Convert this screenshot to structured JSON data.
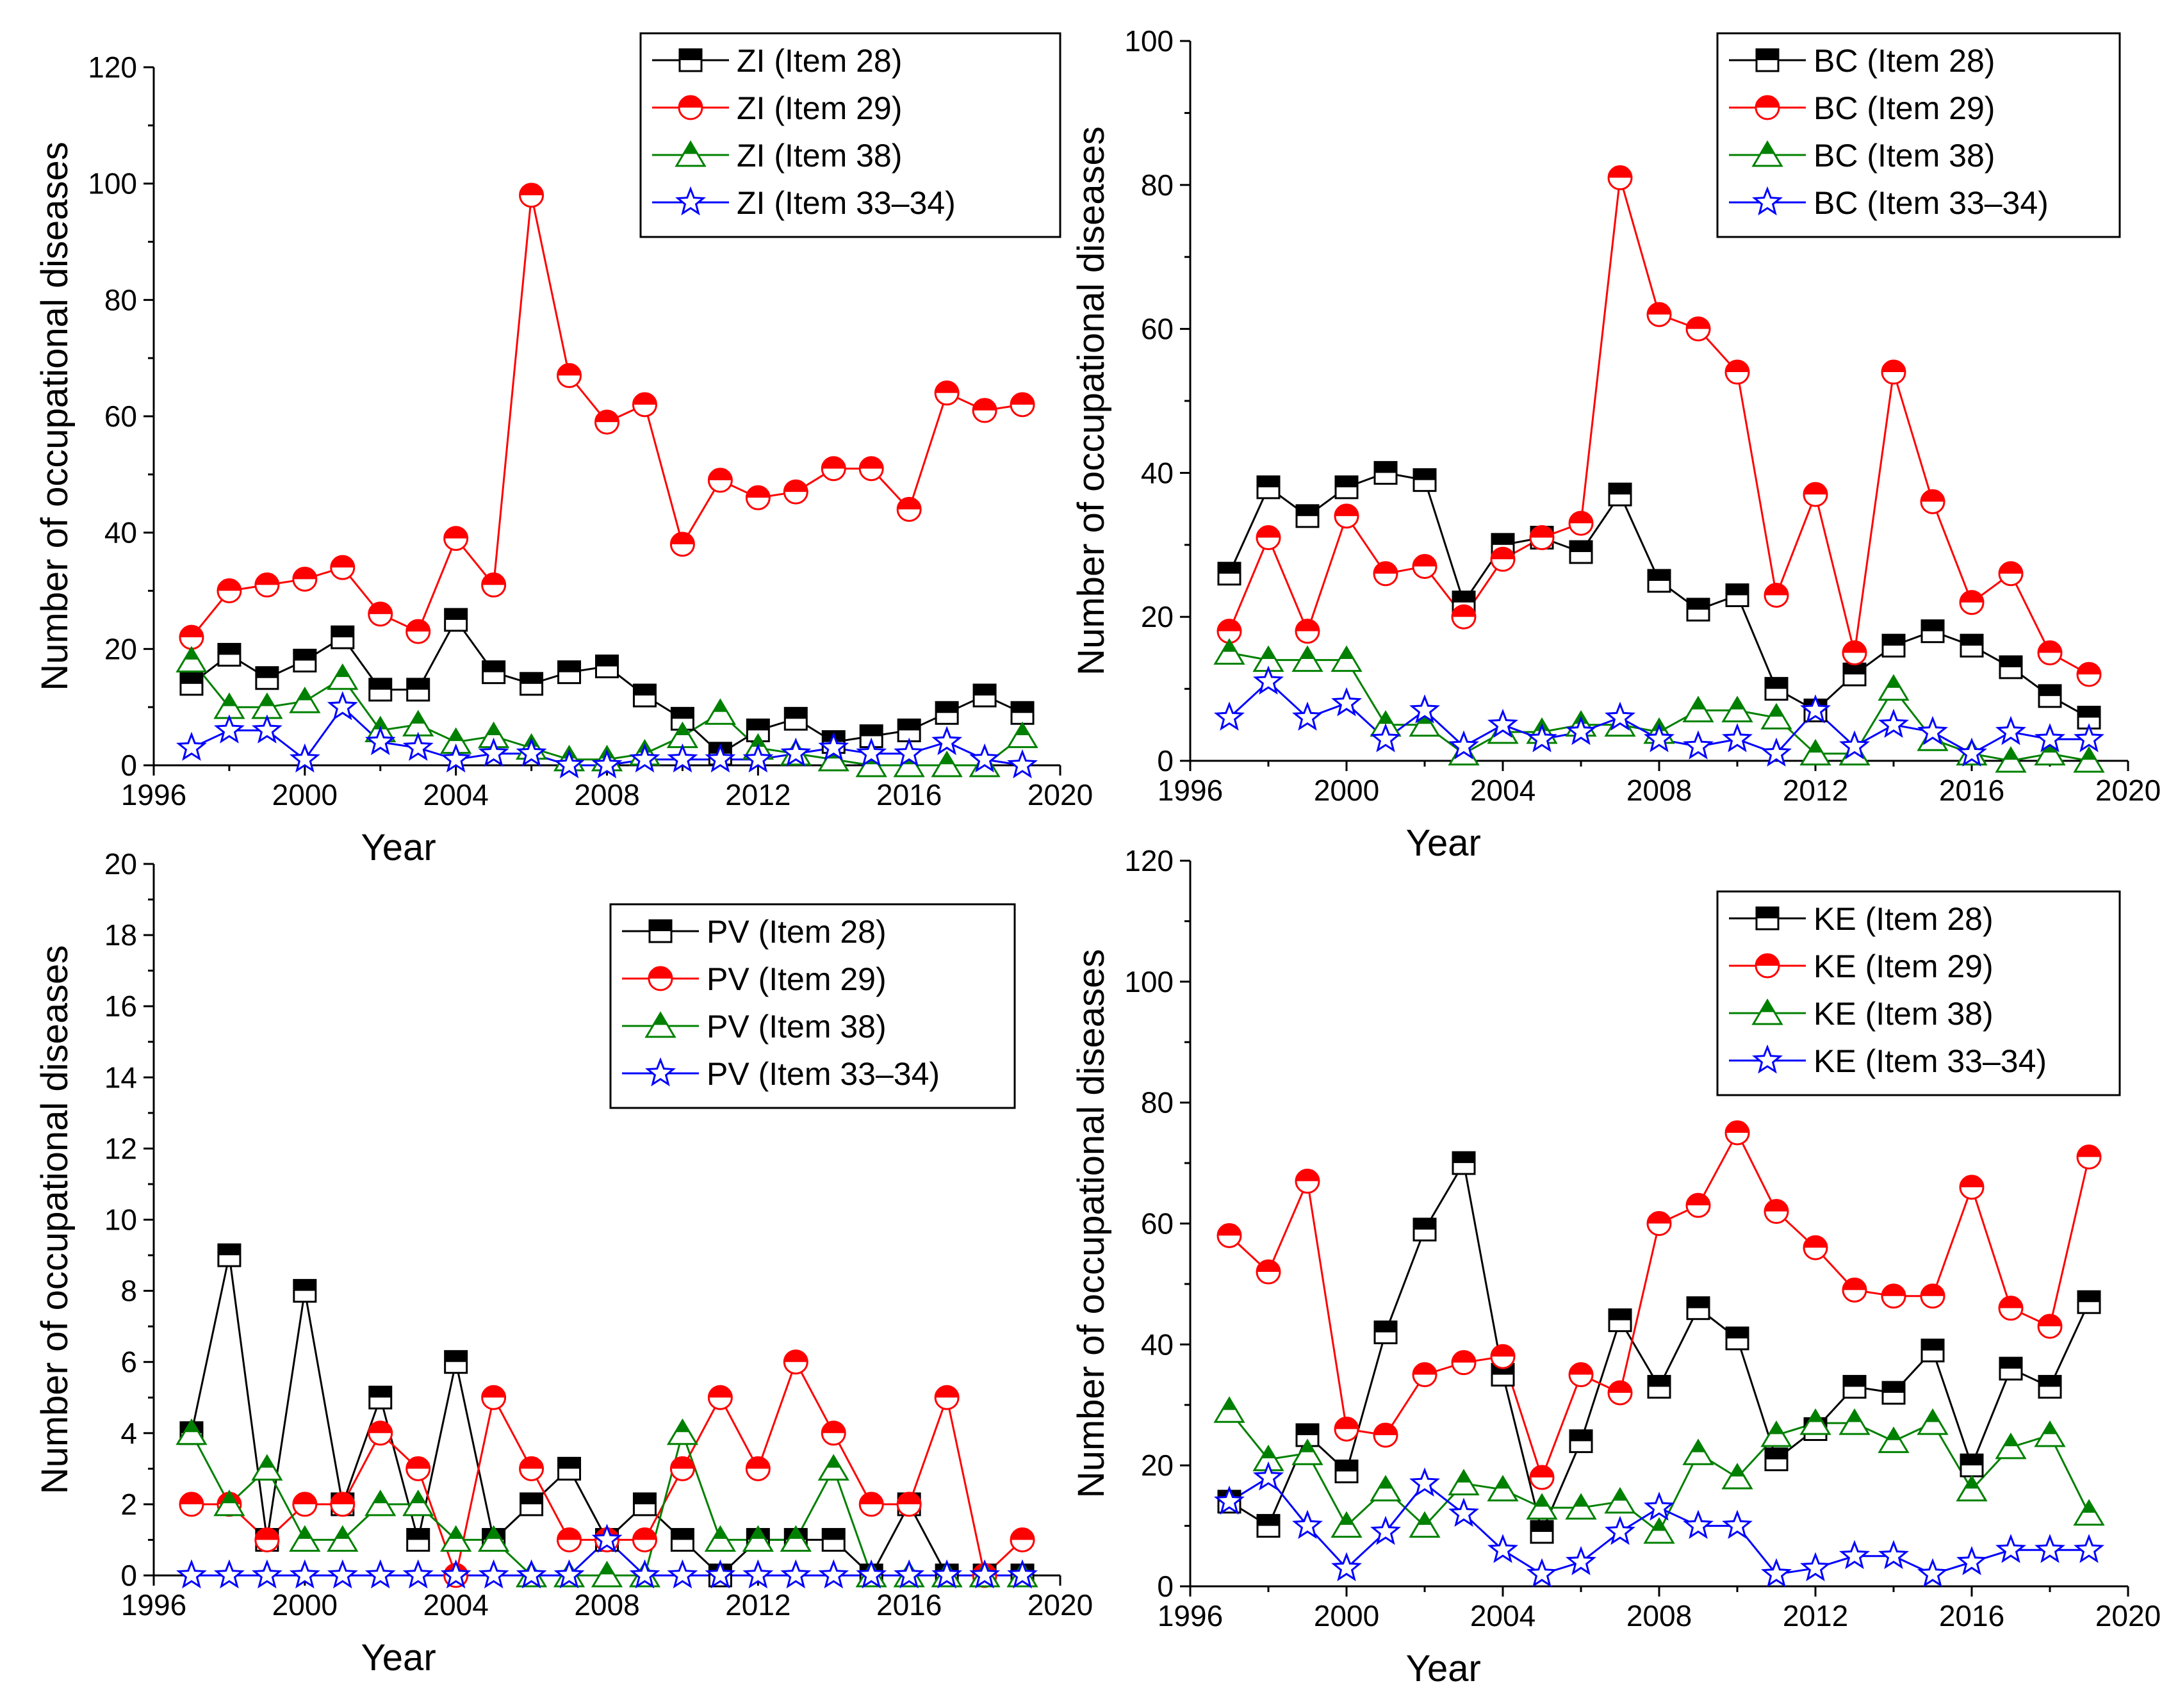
{
  "chart_data": [
    {
      "type": "line",
      "panel": "top-left",
      "xlabel": "Year",
      "ylabel": "Number of occupational diseases",
      "xlim": [
        1996,
        2020
      ],
      "ylim": [
        0,
        120
      ],
      "xticks": [
        1996,
        2000,
        2004,
        2008,
        2012,
        2016,
        2020
      ],
      "yticks": [
        0,
        20,
        40,
        60,
        80,
        100,
        120
      ],
      "legend_position": "top-right",
      "x": [
        1997,
        1998,
        1999,
        2000,
        2001,
        2002,
        2003,
        2004,
        2005,
        2006,
        2007,
        2008,
        2009,
        2010,
        2011,
        2012,
        2013,
        2014,
        2015,
        2016,
        2017,
        2018,
        2019
      ],
      "series": [
        {
          "name": "ZI (Item 28)",
          "color": "#000000",
          "marker": "square",
          "values": [
            14,
            19,
            15,
            18,
            22,
            13,
            13,
            25,
            16,
            14,
            16,
            17,
            12,
            8,
            2,
            6,
            8,
            4,
            5,
            6,
            9,
            12,
            9
          ]
        },
        {
          "name": "ZI (Item 29)",
          "color": "#ff0000",
          "marker": "circle",
          "values": [
            22,
            30,
            31,
            32,
            34,
            26,
            23,
            39,
            31,
            98,
            67,
            59,
            62,
            38,
            49,
            46,
            47,
            51,
            51,
            44,
            64,
            61,
            62
          ]
        },
        {
          "name": "ZI (Item 38)",
          "color": "#008000",
          "marker": "triangle",
          "values": [
            18,
            10,
            10,
            11,
            15,
            6,
            7,
            4,
            5,
            3,
            1,
            1,
            2,
            5,
            9,
            3,
            2,
            1,
            0,
            0,
            0,
            0,
            5
          ]
        },
        {
          "name": "ZI (Item 33–34)",
          "color": "#0000ff",
          "marker": "star",
          "values": [
            3,
            6,
            6,
            1,
            10,
            4,
            3,
            1,
            2,
            2,
            0,
            0,
            1,
            1,
            1,
            1,
            2,
            3,
            2,
            2,
            4,
            1,
            0
          ]
        }
      ]
    },
    {
      "type": "line",
      "panel": "top-right",
      "xlabel": "Year",
      "ylabel": "Number of occupational diseases",
      "xlim": [
        1996,
        2020
      ],
      "ylim": [
        0,
        100
      ],
      "xticks": [
        1996,
        2000,
        2004,
        2008,
        2012,
        2016,
        2020
      ],
      "yticks": [
        0,
        20,
        40,
        60,
        80,
        100
      ],
      "legend_position": "top-right",
      "x": [
        1997,
        1998,
        1999,
        2000,
        2001,
        2002,
        2003,
        2004,
        2005,
        2006,
        2007,
        2008,
        2009,
        2010,
        2011,
        2012,
        2013,
        2014,
        2015,
        2016,
        2017,
        2018,
        2019
      ],
      "series": [
        {
          "name": "BC (Item 28)",
          "color": "#000000",
          "marker": "square",
          "values": [
            26,
            38,
            34,
            38,
            40,
            39,
            22,
            30,
            31,
            29,
            37,
            25,
            21,
            23,
            10,
            7,
            12,
            16,
            18,
            16,
            13,
            9,
            6
          ]
        },
        {
          "name": "BC (Item 29)",
          "color": "#ff0000",
          "marker": "circle",
          "values": [
            18,
            31,
            18,
            34,
            26,
            27,
            20,
            28,
            31,
            33,
            81,
            62,
            60,
            54,
            23,
            37,
            15,
            54,
            36,
            22,
            26,
            15,
            12
          ]
        },
        {
          "name": "BC (Item 38)",
          "color": "#008000",
          "marker": "triangle",
          "values": [
            15,
            14,
            14,
            14,
            5,
            5,
            1,
            4,
            4,
            5,
            5,
            4,
            7,
            7,
            6,
            1,
            1,
            10,
            3,
            1,
            0,
            1,
            0
          ]
        },
        {
          "name": "BC (Item 33–34)",
          "color": "#0000ff",
          "marker": "star",
          "values": [
            6,
            11,
            6,
            8,
            3,
            7,
            2,
            5,
            3,
            4,
            6,
            3,
            2,
            3,
            1,
            7,
            2,
            5,
            4,
            1,
            4,
            3,
            3
          ]
        }
      ]
    },
    {
      "type": "line",
      "panel": "bottom-left",
      "xlabel": "Year",
      "ylabel": "Number of occupational diseases",
      "xlim": [
        1996,
        2020
      ],
      "ylim": [
        0,
        20
      ],
      "xticks": [
        1996,
        2000,
        2004,
        2008,
        2012,
        2016,
        2020
      ],
      "yticks": [
        0,
        2,
        4,
        6,
        8,
        10,
        12,
        14,
        16,
        18,
        20
      ],
      "legend_position": "top-right",
      "x": [
        1997,
        1998,
        1999,
        2000,
        2001,
        2002,
        2003,
        2004,
        2005,
        2006,
        2007,
        2008,
        2009,
        2010,
        2011,
        2012,
        2013,
        2014,
        2015,
        2016,
        2017,
        2018,
        2019
      ],
      "series": [
        {
          "name": "PV (Item 28)",
          "color": "#000000",
          "marker": "square",
          "values": [
            4,
            9,
            1,
            8,
            2,
            5,
            1,
            6,
            1,
            2,
            3,
            1,
            2,
            1,
            0,
            1,
            1,
            1,
            0,
            2,
            0,
            0,
            0
          ]
        },
        {
          "name": "PV (Item 29)",
          "color": "#ff0000",
          "marker": "circle",
          "values": [
            2,
            2,
            1,
            2,
            2,
            4,
            3,
            0,
            5,
            3,
            1,
            1,
            1,
            3,
            5,
            3,
            6,
            4,
            2,
            2,
            5,
            0,
            1
          ]
        },
        {
          "name": "PV (Item 38)",
          "color": "#008000",
          "marker": "triangle",
          "values": [
            4,
            2,
            3,
            1,
            1,
            2,
            2,
            1,
            1,
            0,
            0,
            0,
            0,
            4,
            1,
            1,
            1,
            3,
            0,
            0,
            0,
            0,
            0
          ]
        },
        {
          "name": "PV (Item 33–34)",
          "color": "#0000ff",
          "marker": "star",
          "values": [
            0,
            0,
            0,
            0,
            0,
            0,
            0,
            0,
            0,
            0,
            0,
            1,
            0,
            0,
            0,
            0,
            0,
            0,
            0,
            0,
            0,
            0,
            0
          ]
        }
      ]
    },
    {
      "type": "line",
      "panel": "bottom-right",
      "xlabel": "Year",
      "ylabel": "Number of occupational diseases",
      "xlim": [
        1996,
        2020
      ],
      "ylim": [
        0,
        120
      ],
      "xticks": [
        1996,
        2000,
        2004,
        2008,
        2012,
        2016,
        2020
      ],
      "yticks": [
        0,
        20,
        40,
        60,
        80,
        100,
        120
      ],
      "legend_position": "top-right",
      "x": [
        1997,
        1998,
        1999,
        2000,
        2001,
        2002,
        2003,
        2004,
        2005,
        2006,
        2007,
        2008,
        2009,
        2010,
        2011,
        2012,
        2013,
        2014,
        2015,
        2016,
        2017,
        2018,
        2019
      ],
      "series": [
        {
          "name": "KE (Item 28)",
          "color": "#000000",
          "marker": "square",
          "values": [
            14,
            10,
            25,
            19,
            42,
            59,
            70,
            35,
            9,
            24,
            44,
            33,
            46,
            41,
            21,
            26,
            33,
            32,
            39,
            20,
            36,
            33,
            47
          ]
        },
        {
          "name": "KE (Item 29)",
          "color": "#ff0000",
          "marker": "circle",
          "values": [
            58,
            52,
            67,
            26,
            25,
            35,
            37,
            38,
            18,
            35,
            32,
            60,
            63,
            75,
            62,
            56,
            49,
            48,
            48,
            66,
            46,
            43,
            71
          ]
        },
        {
          "name": "KE (Item 38)",
          "color": "#008000",
          "marker": "triangle",
          "values": [
            29,
            21,
            22,
            10,
            16,
            10,
            17,
            16,
            13,
            13,
            14,
            9,
            22,
            18,
            25,
            27,
            27,
            24,
            27,
            16,
            23,
            25,
            12
          ]
        },
        {
          "name": "KE (Item 33–34)",
          "color": "#0000ff",
          "marker": "star",
          "values": [
            14,
            18,
            10,
            3,
            9,
            17,
            12,
            6,
            2,
            4,
            9,
            13,
            10,
            10,
            2,
            3,
            5,
            5,
            2,
            4,
            6,
            6,
            6
          ]
        }
      ]
    }
  ]
}
